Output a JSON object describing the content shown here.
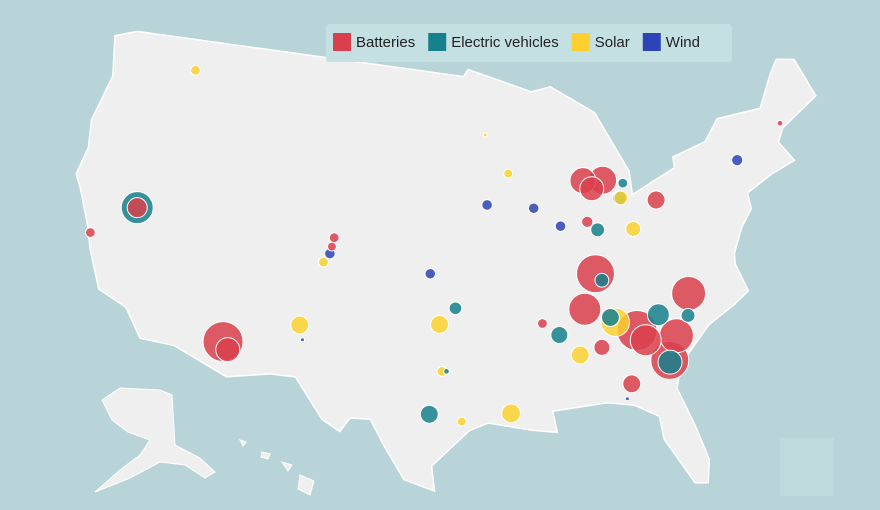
{
  "chart_data": {
    "type": "map",
    "legend": "top",
    "series": [
      {
        "name": "Batteries",
        "color": "#d93f4c",
        "points": [
          {
            "lon": -119.4,
            "lat": 39.5,
            "size": 25
          },
          {
            "lon": -122.2,
            "lat": 37.5,
            "size": 6
          },
          {
            "lon": -111.6,
            "lat": 33.2,
            "size": 100
          },
          {
            "lon": -111.2,
            "lat": 32.8,
            "size": 36
          },
          {
            "lon": -86.1,
            "lat": 42.8,
            "size": 42
          },
          {
            "lon": -84.6,
            "lat": 42.7,
            "size": 49
          },
          {
            "lon": -85.5,
            "lat": 42.3,
            "size": 36
          },
          {
            "lon": -80.8,
            "lat": 41.2,
            "size": 20
          },
          {
            "lon": -85.9,
            "lat": 37.6,
            "size": 90
          },
          {
            "lon": -86.1,
            "lat": 40.5,
            "size": 8
          },
          {
            "lon": -86.9,
            "lat": 35.7,
            "size": 64
          },
          {
            "lon": -79.6,
            "lat": 35.8,
            "size": 72
          },
          {
            "lon": -83.5,
            "lat": 34.2,
            "size": 100
          },
          {
            "lon": -83.0,
            "lat": 33.6,
            "size": 60
          },
          {
            "lon": -80.9,
            "lat": 33.6,
            "size": 72
          },
          {
            "lon": -81.6,
            "lat": 32.3,
            "size": 90
          },
          {
            "lon": -86.0,
            "lat": 33.5,
            "size": 16
          },
          {
            "lon": -70.3,
            "lat": 43.9,
            "size": 2
          },
          {
            "lon": -89.9,
            "lat": 35.1,
            "size": 6
          },
          {
            "lon": -84.3,
            "lat": 31.3,
            "size": 20
          },
          {
            "lon": -104.8,
            "lat": 39.7,
            "size": 6
          },
          {
            "lon": -104.9,
            "lat": 39.2,
            "size": 5
          }
        ]
      },
      {
        "name": "Electric vehicles",
        "color": "#16808c",
        "points": [
          {
            "lon": -119.4,
            "lat": 39.5,
            "size": 64
          },
          {
            "lon": -83.1,
            "lat": 42.4,
            "size": 6
          },
          {
            "lon": -83.5,
            "lat": 41.6,
            "size": 12
          },
          {
            "lon": -85.4,
            "lat": 40.0,
            "size": 12
          },
          {
            "lon": -85.5,
            "lat": 37.2,
            "size": 12
          },
          {
            "lon": -95.9,
            "lat": 36.1,
            "size": 10
          },
          {
            "lon": -97.6,
            "lat": 30.2,
            "size": 20
          },
          {
            "lon": -85.2,
            "lat": 35.1,
            "size": 20
          },
          {
            "lon": -88.8,
            "lat": 34.4,
            "size": 18
          },
          {
            "lon": -81.6,
            "lat": 32.2,
            "size": 36
          },
          {
            "lon": -81.9,
            "lat": 34.9,
            "size": 30
          },
          {
            "lon": -79.9,
            "lat": 34.6,
            "size": 12
          },
          {
            "lon": -96.5,
            "lat": 32.6,
            "size": 2
          }
        ]
      },
      {
        "name": "Solar",
        "color": "#fcd12f",
        "points": [
          {
            "lon": -117.5,
            "lat": 47.7,
            "size": 6
          },
          {
            "lon": -105.4,
            "lat": 38.3,
            "size": 6
          },
          {
            "lon": -106.6,
            "lat": 34.7,
            "size": 20
          },
          {
            "lon": -97.0,
            "lat": 35.2,
            "size": 20
          },
          {
            "lon": -96.8,
            "lat": 32.6,
            "size": 6
          },
          {
            "lon": -95.5,
            "lat": 29.8,
            "size": 5
          },
          {
            "lon": -92.3,
            "lat": 30.2,
            "size": 22
          },
          {
            "lon": -84.9,
            "lat": 34.8,
            "size": 50
          },
          {
            "lon": -87.5,
            "lat": 33.2,
            "size": 20
          },
          {
            "lon": -83.4,
            "lat": 41.6,
            "size": 12
          },
          {
            "lon": -82.8,
            "lat": 39.8,
            "size": 14
          },
          {
            "lon": -91.8,
            "lat": 43.5,
            "size": 5
          },
          {
            "lon": -93.5,
            "lat": 45.7,
            "size": 1
          }
        ]
      },
      {
        "name": "Wind",
        "color": "#2e44b6",
        "points": [
          {
            "lon": -74.2,
            "lat": 42.5,
            "size": 8
          },
          {
            "lon": -93.5,
            "lat": 41.8,
            "size": 7
          },
          {
            "lon": -90.0,
            "lat": 41.5,
            "size": 7
          },
          {
            "lon": -88.1,
            "lat": 40.4,
            "size": 7
          },
          {
            "lon": -97.7,
            "lat": 38.0,
            "size": 7
          },
          {
            "lon": -105.0,
            "lat": 38.8,
            "size": 7
          },
          {
            "lon": -106.3,
            "lat": 33.9,
            "size": 1
          },
          {
            "lon": -84.7,
            "lat": 30.5,
            "size": 1
          }
        ]
      }
    ]
  }
}
